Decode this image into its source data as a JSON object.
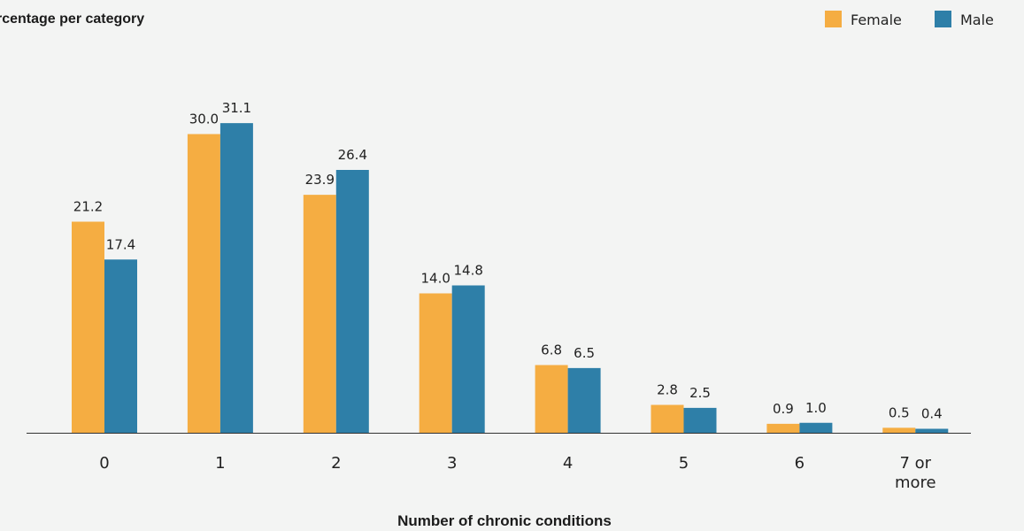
{
  "chart_data": {
    "type": "bar",
    "ylabel": "rcentage per category",
    "xlabel": "Number of chronic conditions",
    "categories": [
      "0",
      "1",
      "2",
      "3",
      "4",
      "5",
      "6",
      "7 or more"
    ],
    "series": [
      {
        "name": "Female",
        "color": "#f5ad42",
        "values": [
          21.2,
          30.0,
          23.9,
          14.0,
          6.8,
          2.8,
          0.9,
          0.5
        ]
      },
      {
        "name": "Male",
        "color": "#2e7fa8",
        "values": [
          17.4,
          31.1,
          26.4,
          14.8,
          6.5,
          2.5,
          1.0,
          0.4
        ]
      }
    ],
    "ylim": [
      0,
      31.1
    ],
    "grid": false,
    "legend_position": "top-right",
    "value_labels": true
  }
}
